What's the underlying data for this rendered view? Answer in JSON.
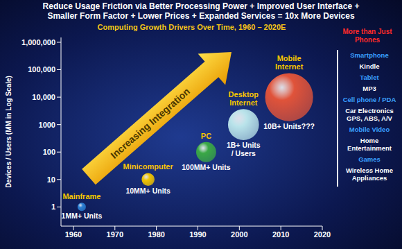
{
  "header": [
    "Reduce Usage Friction via Better Processing Power + Improved User Interface +",
    "Smaller Form Factor + Lower Prices + Expanded Services = 10x More Devices"
  ],
  "chart_data": {
    "type": "scatter",
    "title": "Computing Growth Drivers Over Time, 1960 – 2020E",
    "y_label": "Devices / Users (MM in Log Scale)",
    "x": [
      1962,
      1978,
      1992,
      2001,
      2012
    ],
    "values": [
      1,
      10,
      100,
      1000,
      10000
    ],
    "value_labels": [
      "1MM+ Units",
      "10MM+ Units",
      "100MM+ Units",
      "1B+ Units / Users",
      "10B+ Units???"
    ],
    "names": [
      "Mainframe",
      "Minicomputer",
      "PC",
      "Desktop Internet",
      "Mobile Internet"
    ],
    "sizes": [
      1,
      10,
      100,
      1000,
      10000
    ],
    "colors": [
      "#2a7fd4",
      "#f2c500",
      "#3aa845",
      "#b9e3ea",
      "#e0533a"
    ],
    "data_labels": true,
    "log": "y",
    "grid": false,
    "xlim": [
      1957,
      2020
    ],
    "xticks": [
      1960,
      1970,
      1980,
      1990,
      2000,
      2010,
      2020
    ],
    "ylim": [
      0.2,
      1500000
    ],
    "yticks": [
      1,
      10,
      100,
      1000,
      {
        "value": 10000,
        "label": "10,000"
      },
      {
        "value": 100000,
        "label": "100,000"
      },
      {
        "value": 1000000,
        "label": "1,000,000"
      }
    ],
    "annotations": [
      "Increasing Integration"
    ]
  },
  "side_panel": {
    "title": "More than Just Phones",
    "items": [
      {
        "text": "Smartphone",
        "color": "#3aa0ff"
      },
      {
        "text": "Kindle",
        "color": "#ffffff"
      },
      {
        "text": "Tablet",
        "color": "#3aa0ff"
      },
      {
        "text": "MP3",
        "color": "#ffffff"
      },
      {
        "text": "Cell phone / PDA",
        "color": "#3aa0ff"
      },
      {
        "text": "Car Electronics GPS, ABS, A/V",
        "color": "#ffffff"
      },
      {
        "text": "Mobile Video",
        "color": "#3aa0ff"
      },
      {
        "text": "Home Entertainment",
        "color": "#ffffff"
      },
      {
        "text": "Games",
        "color": "#3aa0ff"
      },
      {
        "text": "Wireless Home Appliances",
        "color": "#ffffff"
      }
    ]
  }
}
